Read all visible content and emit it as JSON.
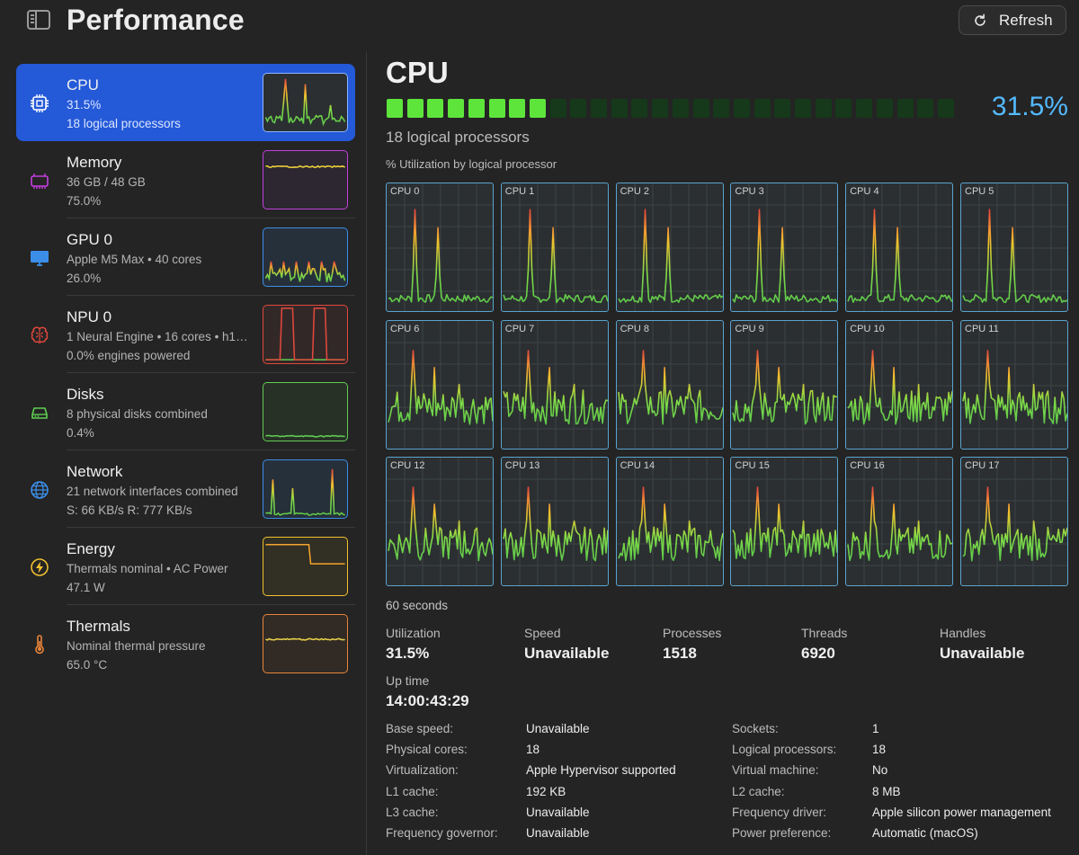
{
  "header": {
    "title": "Performance",
    "refresh_label": "Refresh"
  },
  "sidebar": {
    "items": [
      {
        "title": "CPU",
        "line1": "31.5%",
        "line2": "18 logical processors",
        "icon": "cpu-chip-icon",
        "color": "#ffffff",
        "active": true
      },
      {
        "title": "Memory",
        "line1": "36 GB / 48 GB",
        "line2": "75.0%",
        "icon": "memory-chip-icon",
        "color": "#c43fe0"
      },
      {
        "title": "GPU 0",
        "line1": "Apple M5 Max • 40 cores",
        "line2": "26.0%",
        "icon": "monitor-icon",
        "color": "#3b8ee8"
      },
      {
        "title": "NPU 0",
        "line1": "1 Neural Engine • 16 cores • h1…",
        "line2": "0.0% engines powered",
        "icon": "brain-icon",
        "color": "#e0483c"
      },
      {
        "title": "Disks",
        "line1": "8 physical disks combined",
        "line2": "0.4%",
        "icon": "disk-drive-icon",
        "color": "#5fce52"
      },
      {
        "title": "Network",
        "line1": "21 network interfaces combined",
        "line2": "S: 66 KB/s  R: 777 KB/s",
        "icon": "globe-icon",
        "color": "#3b8ee8"
      },
      {
        "title": "Energy",
        "line1": "Thermals nominal • AC Power",
        "line2": "47.1 W",
        "icon": "bolt-icon",
        "color": "#f2c12e"
      },
      {
        "title": "Thermals",
        "line1": "Nominal thermal pressure",
        "line2": "65.0 °C",
        "icon": "thermometer-icon",
        "color": "#e8853a"
      }
    ]
  },
  "main": {
    "title": "CPU",
    "utilization_display": "31.5%",
    "utilization_fraction": 0.315,
    "bar_segments": 28,
    "logical_processors_text": "18 logical processors",
    "graph_caption": "% Utilization by logical processor",
    "time_window": "60 seconds",
    "cpu_labels": [
      "CPU 0",
      "CPU 1",
      "CPU 2",
      "CPU 3",
      "CPU 4",
      "CPU 5",
      "CPU 6",
      "CPU 7",
      "CPU 8",
      "CPU 9",
      "CPU 10",
      "CPU 11",
      "CPU 12",
      "CPU 13",
      "CPU 14",
      "CPU 15",
      "CPU 16",
      "CPU 17"
    ],
    "stats": [
      {
        "label": "Utilization",
        "value": "31.5%"
      },
      {
        "label": "Speed",
        "value": "Unavailable"
      },
      {
        "label": "Processes",
        "value": "1518"
      },
      {
        "label": "Threads",
        "value": "6920"
      },
      {
        "label": "Handles",
        "value": "Unavailable"
      }
    ],
    "uptime": {
      "label": "Up time",
      "value": "14:00:43:29"
    },
    "details_left": [
      {
        "key": "Base speed:",
        "value": "Unavailable"
      },
      {
        "key": "Physical cores:",
        "value": "18"
      },
      {
        "key": "Virtualization:",
        "value": "Apple Hypervisor supported"
      },
      {
        "key": "L1 cache:",
        "value": "192 KB"
      },
      {
        "key": "L3 cache:",
        "value": "Unavailable"
      },
      {
        "key": "Frequency governor:",
        "value": "Unavailable"
      }
    ],
    "details_right": [
      {
        "key": "Sockets:",
        "value": "1"
      },
      {
        "key": "Logical processors:",
        "value": "18"
      },
      {
        "key": "Virtual machine:",
        "value": "No"
      },
      {
        "key": "L2 cache:",
        "value": "8 MB"
      },
      {
        "key": "Frequency driver:",
        "value": "Apple silicon power management"
      },
      {
        "key": "Power preference:",
        "value": "Automatic (macOS)"
      }
    ]
  },
  "colors": {
    "accent": "#2459d8",
    "util_text": "#54b9ff",
    "bar_on": "#5ee53c",
    "bar_off": "#15391a",
    "cell_border": "#5aa4cf"
  }
}
